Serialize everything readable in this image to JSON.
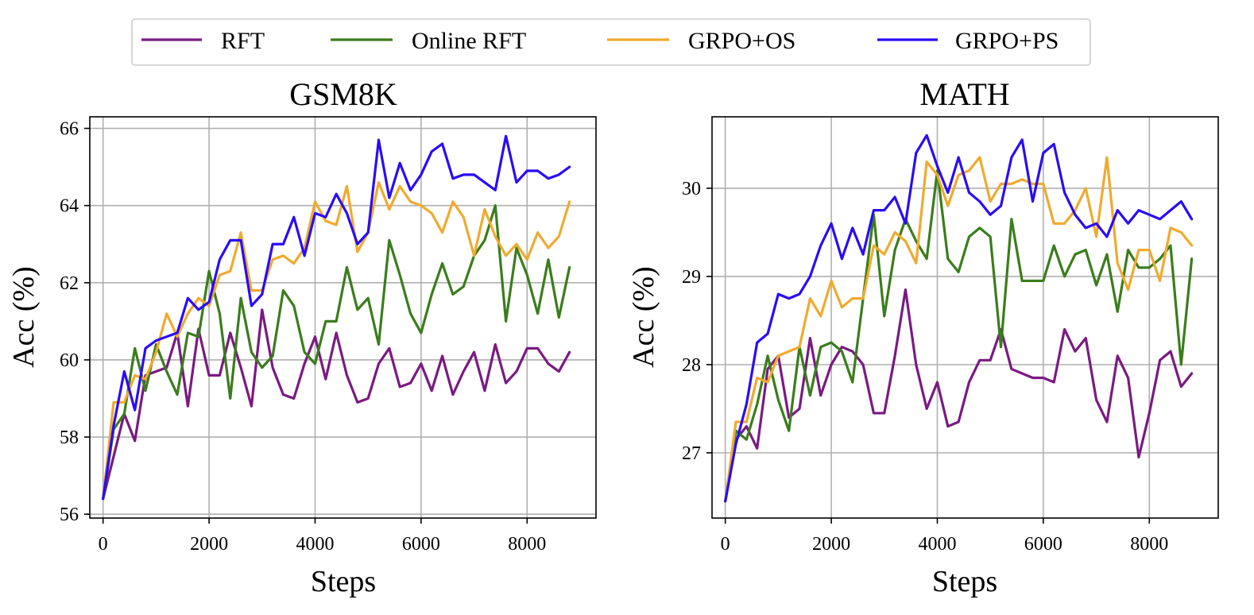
{
  "legend": {
    "items": [
      {
        "label": "RFT",
        "color": "#7a1a82"
      },
      {
        "label": "Online RFT",
        "color": "#3a7d1c"
      },
      {
        "label": "GRPO+OS",
        "color": "#f0aa2f"
      },
      {
        "label": "GRPO+PS",
        "color": "#2a0cf5"
      }
    ]
  },
  "chart_data": [
    {
      "type": "line",
      "title": "GSM8K",
      "xlabel": "Steps",
      "ylabel": "Acc (%)",
      "xlim": [
        -250,
        9300
      ],
      "ylim": [
        55.9,
        66.3
      ],
      "xticks": [
        0,
        2000,
        4000,
        6000,
        8000
      ],
      "xtick_labels": [
        "0",
        "2000",
        "4000",
        "6000",
        "8000"
      ],
      "yticks": [
        56,
        58,
        60,
        62,
        64,
        66
      ],
      "ytick_labels": [
        "56",
        "58",
        "60",
        "62",
        "64",
        "66"
      ],
      "grid": true,
      "x": [
        0,
        200,
        400,
        600,
        800,
        1000,
        1200,
        1400,
        1600,
        1800,
        2000,
        2200,
        2400,
        2600,
        2800,
        3000,
        3200,
        3400,
        3600,
        3800,
        4000,
        4200,
        4400,
        4600,
        4800,
        5000,
        5200,
        5400,
        5600,
        5800,
        6000,
        6200,
        6400,
        6600,
        6800,
        7000,
        7200,
        7400,
        7600,
        7800,
        8000,
        8200,
        8400,
        8600,
        8800
      ],
      "series": [
        {
          "name": "RFT",
          "color": "#7a1a82",
          "values": [
            56.4,
            57.5,
            58.6,
            57.9,
            59.6,
            59.7,
            59.8,
            60.7,
            58.8,
            60.8,
            59.6,
            59.6,
            60.7,
            59.8,
            58.8,
            61.3,
            59.8,
            59.1,
            59.0,
            59.9,
            60.6,
            59.5,
            60.7,
            59.6,
            58.9,
            59.0,
            59.9,
            60.3,
            59.3,
            59.4,
            59.9,
            59.2,
            60.1,
            59.1,
            59.7,
            60.2,
            59.2,
            60.4,
            59.4,
            59.7,
            60.3,
            60.3,
            59.9,
            59.7,
            60.2
          ]
        },
        {
          "name": "Online RFT",
          "color": "#3a7d1c",
          "values": [
            56.4,
            58.2,
            58.6,
            60.3,
            59.2,
            60.4,
            59.7,
            59.1,
            60.7,
            60.6,
            62.3,
            61.2,
            59.0,
            61.6,
            60.2,
            59.8,
            60.1,
            61.8,
            61.4,
            60.2,
            59.9,
            61.0,
            61.0,
            62.4,
            61.3,
            61.6,
            60.4,
            63.1,
            62.2,
            61.2,
            60.7,
            61.7,
            62.5,
            61.7,
            61.9,
            62.7,
            63.1,
            64.0,
            61.0,
            62.9,
            62.2,
            61.2,
            62.6,
            61.1,
            62.4
          ]
        },
        {
          "name": "GRPO+OS",
          "color": "#f0aa2f",
          "values": [
            56.4,
            58.9,
            58.9,
            59.6,
            59.5,
            60.2,
            61.2,
            60.6,
            61.2,
            61.6,
            61.4,
            62.2,
            62.3,
            63.3,
            61.8,
            61.8,
            62.6,
            62.7,
            62.5,
            62.9,
            64.1,
            63.6,
            63.5,
            64.5,
            62.8,
            63.3,
            64.6,
            63.9,
            64.5,
            64.1,
            64.0,
            63.8,
            63.3,
            64.1,
            63.7,
            62.7,
            63.9,
            63.2,
            62.7,
            63.0,
            62.6,
            63.3,
            62.9,
            63.2,
            64.1
          ]
        },
        {
          "name": "GRPO+PS",
          "color": "#2a0cf5",
          "values": [
            56.4,
            58.3,
            59.7,
            58.7,
            60.3,
            60.5,
            60.6,
            60.7,
            61.6,
            61.3,
            61.5,
            62.6,
            63.1,
            63.1,
            61.4,
            61.7,
            63.0,
            63.0,
            63.7,
            62.7,
            63.8,
            63.7,
            64.3,
            63.8,
            63.0,
            63.3,
            65.7,
            64.2,
            65.1,
            64.4,
            64.8,
            65.4,
            65.6,
            64.7,
            64.8,
            64.8,
            64.6,
            64.4,
            65.8,
            64.6,
            64.9,
            64.9,
            64.7,
            64.8,
            65.0
          ]
        }
      ]
    },
    {
      "type": "line",
      "title": "MATH",
      "xlabel": "Steps",
      "ylabel": "Acc (%)",
      "xlim": [
        -250,
        9300
      ],
      "ylim": [
        26.26,
        30.81
      ],
      "xticks": [
        0,
        2000,
        4000,
        6000,
        8000
      ],
      "xtick_labels": [
        "0",
        "2000",
        "4000",
        "6000",
        "8000"
      ],
      "yticks": [
        27,
        28,
        29,
        30
      ],
      "ytick_labels": [
        "27",
        "28",
        "29",
        "30"
      ],
      "grid": true,
      "x": [
        0,
        200,
        400,
        600,
        800,
        1000,
        1200,
        1400,
        1600,
        1800,
        2000,
        2200,
        2400,
        2600,
        2800,
        3000,
        3200,
        3400,
        3600,
        3800,
        4000,
        4200,
        4400,
        4600,
        4800,
        5000,
        5200,
        5400,
        5600,
        5800,
        6000,
        6200,
        6400,
        6600,
        6800,
        7000,
        7200,
        7400,
        7600,
        7800,
        8000,
        8200,
        8400,
        8600,
        8800
      ],
      "series": [
        {
          "name": "RFT",
          "color": "#7a1a82",
          "values": [
            26.45,
            27.15,
            27.3,
            27.05,
            27.95,
            28.1,
            27.4,
            27.5,
            28.3,
            27.65,
            28.0,
            28.2,
            28.15,
            28.0,
            27.45,
            27.45,
            28.1,
            28.85,
            28.0,
            27.5,
            27.8,
            27.3,
            27.35,
            27.8,
            28.05,
            28.05,
            28.4,
            27.95,
            27.9,
            27.85,
            27.85,
            27.8,
            28.4,
            28.15,
            28.3,
            27.6,
            27.35,
            28.1,
            27.85,
            26.95,
            27.45,
            28.05,
            28.15,
            27.75,
            27.9
          ]
        },
        {
          "name": "Online RFT",
          "color": "#3a7d1c",
          "values": [
            26.45,
            27.25,
            27.15,
            27.55,
            28.1,
            27.6,
            27.25,
            28.2,
            27.65,
            28.2,
            28.25,
            28.15,
            27.8,
            28.75,
            29.7,
            28.55,
            29.3,
            29.65,
            29.4,
            29.2,
            30.2,
            29.2,
            29.05,
            29.45,
            29.55,
            29.45,
            28.2,
            29.65,
            28.95,
            28.95,
            28.95,
            29.35,
            29.0,
            29.25,
            29.3,
            28.9,
            29.25,
            28.6,
            29.3,
            29.1,
            29.1,
            29.2,
            29.35,
            28.0,
            29.2
          ]
        },
        {
          "name": "GRPO+OS",
          "color": "#f0aa2f",
          "values": [
            26.45,
            27.35,
            27.35,
            27.85,
            27.8,
            28.1,
            28.15,
            28.2,
            28.75,
            28.55,
            28.95,
            28.65,
            28.75,
            28.75,
            29.35,
            29.25,
            29.5,
            29.4,
            29.15,
            30.3,
            30.15,
            29.8,
            30.15,
            30.2,
            30.35,
            29.85,
            30.05,
            30.05,
            30.1,
            30.05,
            30.05,
            29.6,
            29.6,
            29.75,
            30.0,
            29.45,
            30.35,
            29.15,
            28.85,
            29.3,
            29.3,
            28.95,
            29.55,
            29.5,
            29.35
          ]
        },
        {
          "name": "GRPO+PS",
          "color": "#2a0cf5",
          "values": [
            26.45,
            27.1,
            27.55,
            28.25,
            28.35,
            28.8,
            28.75,
            28.8,
            29.0,
            29.35,
            29.6,
            29.2,
            29.55,
            29.25,
            29.75,
            29.75,
            29.9,
            29.6,
            30.4,
            30.6,
            30.25,
            29.95,
            30.35,
            29.95,
            29.85,
            29.7,
            29.8,
            30.35,
            30.55,
            29.85,
            30.4,
            30.5,
            29.95,
            29.7,
            29.55,
            29.6,
            29.45,
            29.75,
            29.6,
            29.75,
            29.7,
            29.65,
            29.75,
            29.85,
            29.65
          ]
        }
      ]
    }
  ]
}
